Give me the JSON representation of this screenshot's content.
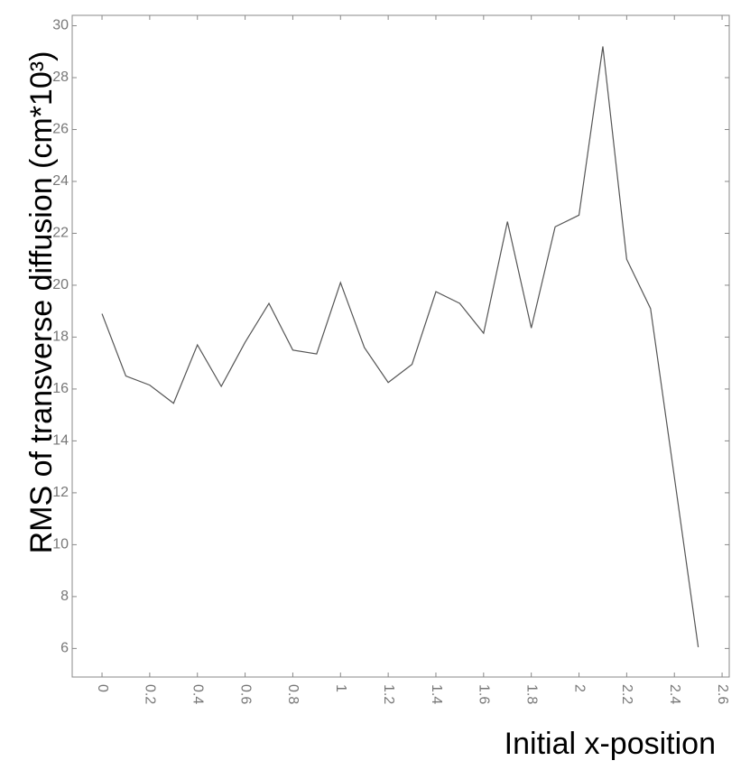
{
  "chart_data": {
    "type": "line",
    "x_label": "Initial x-position",
    "y_label": "RMS of transverse diffusion (cm*10³)",
    "x": [
      0,
      0.1,
      0.2,
      0.3,
      0.4,
      0.5,
      0.6,
      0.7,
      0.8,
      0.9,
      1,
      1.1,
      1.2,
      1.3,
      1.4,
      1.5,
      1.6,
      1.7,
      1.8,
      1.9,
      2,
      2.1,
      2.2,
      2.3,
      2.4,
      2.5
    ],
    "values": [
      18.9,
      16.5,
      16.15,
      15.45,
      17.7,
      16.1,
      17.8,
      19.3,
      17.5,
      17.35,
      20.1,
      17.6,
      16.25,
      16.95,
      19.75,
      19.3,
      18.15,
      22.45,
      18.35,
      22.25,
      22.7,
      29.2,
      21.0,
      19.1,
      12.6,
      6.05
    ],
    "color": "#555555",
    "xlim": [
      -0.125,
      2.63
    ],
    "ylim": [
      4.9,
      30.4
    ],
    "xticks": [
      0,
      0.2,
      0.4,
      0.6,
      0.8,
      1,
      1.2,
      1.4,
      1.6,
      1.8,
      2,
      2.2,
      2.4,
      2.6
    ],
    "yticks": [
      6,
      8,
      10,
      12,
      14,
      16,
      18,
      20,
      22,
      24,
      26,
      28,
      30
    ]
  }
}
